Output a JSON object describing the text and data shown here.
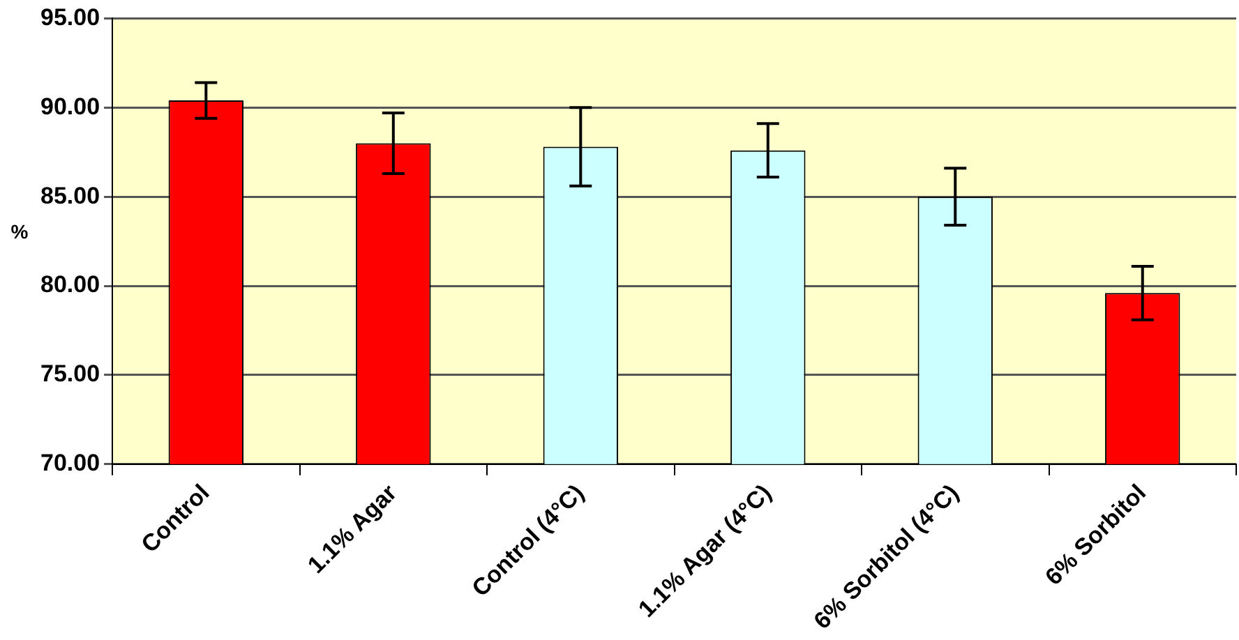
{
  "chart_data": {
    "type": "bar",
    "ylabel": "%",
    "categories": [
      "Control",
      "1.1% Agar",
      "Control (4°C)",
      "1.1% Agar (4°C)",
      "6% Sorbitol (4°C)",
      "6% Sorbitol"
    ],
    "values": [
      90.4,
      88.0,
      87.8,
      87.6,
      85.0,
      79.6
    ],
    "errors": [
      1.0,
      1.7,
      2.2,
      1.5,
      1.6,
      1.5
    ],
    "colors": [
      "#ff0000",
      "#ff0000",
      "#ccffff",
      "#ccffff",
      "#ccffff",
      "#ff0000"
    ],
    "ylim": [
      70,
      95
    ],
    "yticks": [
      {
        "value": 70,
        "label": "70.00"
      },
      {
        "value": 75,
        "label": "75.00"
      },
      {
        "value": 80,
        "label": "80.00"
      },
      {
        "value": 85,
        "label": "85.00"
      },
      {
        "value": 90,
        "label": "90.00"
      },
      {
        "value": 95,
        "label": "95.00"
      }
    ],
    "grid": "y",
    "legend": false
  }
}
